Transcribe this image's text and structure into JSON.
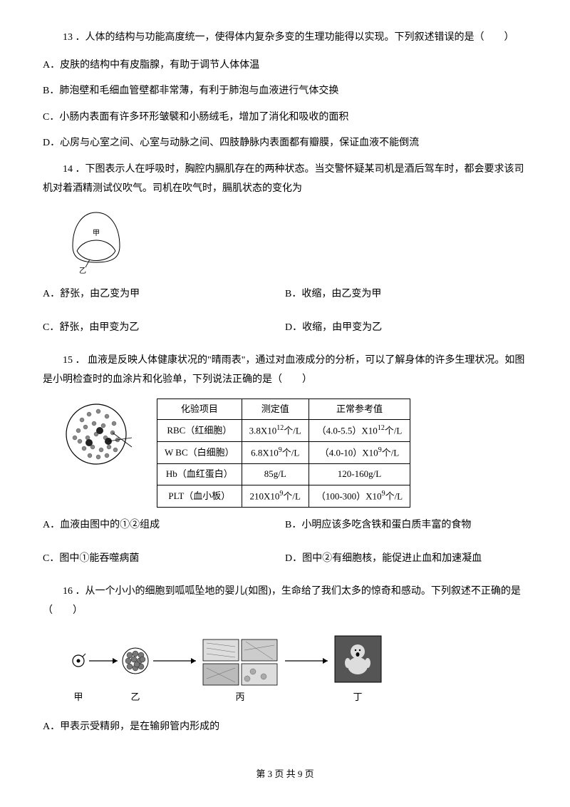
{
  "q13": {
    "stem": "13 ．人体的结构与功能高度统一，使得体内复杂多变的生理功能得以实现。下列叙述错误的是（　　）",
    "A": "A．皮肤的结构中有皮脂腺，有助于调节人体体温",
    "B": "B．肺泡壁和毛细血管壁都非常薄，有利于肺泡与血液进行气体交换",
    "C": "C．小肠内表面有许多环形皱襞和小肠绒毛，增加了消化和吸收的面积",
    "D": "D．心房与心室之间、心室与动脉之间、四肢静脉内表面都有瓣膜，保证血液不能倒流"
  },
  "q14": {
    "stem": "14 ．下图表示人在呼吸时，胸腔内膈肌存在的两种状态。当交警怀疑某司机是酒后驾车时，都会要求该司机对着酒精测试仪吹气。司机在吹气时，膈肌状态的变化为",
    "A": "A．舒张，由乙变为甲",
    "B": "B．收缩，由乙变为甲",
    "C": "C．舒张，由甲变为乙",
    "D": "D．收缩，由甲变为乙",
    "label_jia": "甲",
    "label_yi": "乙"
  },
  "q15": {
    "stem": "15 ． 血液是反映人体健康状况的\"晴雨表\"，通过对血液成分的分析，可以了解身体的许多生理状况。如图是小明检查时的血涂片和化验单，下列说法正确的是（　　）",
    "table": {
      "headers": [
        "化验项目",
        "测定值",
        "正常参考值"
      ],
      "rows": [
        {
          "item": "RBC（红细胞）",
          "value": "3.8X10<sup>12</sup>个/L",
          "ref": "（4.0-5.5）X10<sup>12</sup>个/L"
        },
        {
          "item": "W BC（白细胞）",
          "value": "6.8X10<sup>9</sup>个/L",
          "ref": "（4.0-10）X10<sup>9</sup>个/L"
        },
        {
          "item": "Hb（血红蛋白）",
          "value": "85g/L",
          "ref": "120-160g/L"
        },
        {
          "item": "PLT（血小板）",
          "value": "210X10<sup>9</sup>个/L",
          "ref": "（100-300）X10<sup>9</sup>个/L"
        }
      ]
    },
    "A": "A．血液由图中的①②组成",
    "B": "B．小明应该多吃含铁和蛋白质丰富的食物",
    "C": "C．图中①能吞噬病菌",
    "D": "D．图中②有细胞核，能促进止血和加速凝血"
  },
  "q16": {
    "stem": "16 ．从一个小小的细胞到呱呱坠地的婴儿(如图)，生命给了我们太多的惊奇和感动。下列叙述不正确的是（　　）",
    "labels": {
      "jia": "甲",
      "yi": "乙",
      "bing": "丙",
      "ding": "丁"
    },
    "A": "A．甲表示受精卵，是在输卵管内形成的"
  },
  "footer": "第 3 页 共 9 页",
  "colors": {
    "text": "#000000",
    "bg": "#ffffff",
    "table_border": "#000000"
  }
}
